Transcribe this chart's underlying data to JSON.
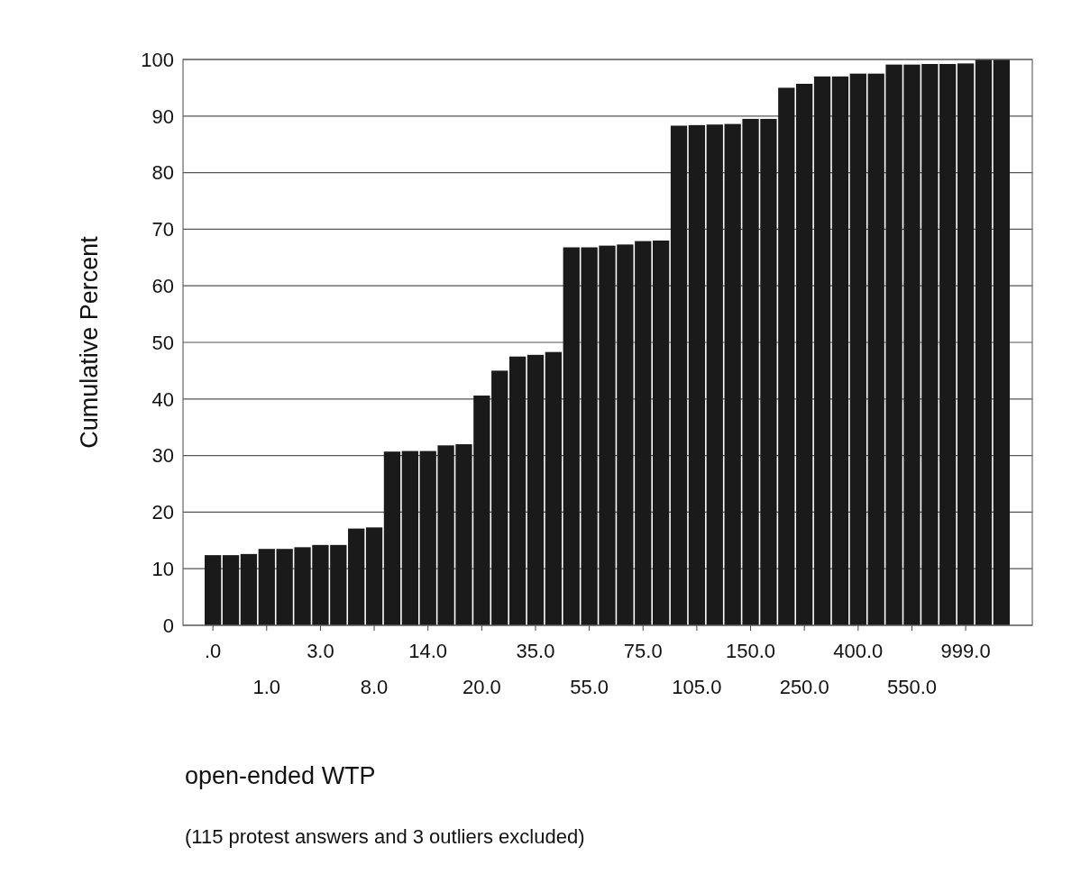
{
  "chart_data": {
    "type": "bar",
    "ylabel": "Cumulative Percent",
    "xlabel": "open-ended WTP",
    "annotations": [
      "(115 protest answers and 3 outliers excluded)"
    ],
    "categories": [
      ".0",
      null,
      null,
      "1.0",
      null,
      null,
      "3.0",
      null,
      null,
      "8.0",
      null,
      null,
      "14.0",
      null,
      null,
      "20.0",
      null,
      null,
      "35.0",
      null,
      null,
      "55.0",
      null,
      null,
      "75.0",
      null,
      null,
      "105.0",
      null,
      null,
      "150.0",
      null,
      null,
      "250.0",
      null,
      null,
      "400.0",
      null,
      null,
      "550.0",
      null,
      null,
      "999.0",
      null,
      null
    ],
    "values": [
      12.4,
      12.4,
      12.6,
      13.5,
      13.5,
      13.8,
      14.2,
      14.2,
      17.1,
      17.3,
      30.7,
      30.8,
      30.8,
      31.8,
      32.0,
      40.6,
      45.0,
      47.5,
      47.8,
      48.3,
      66.8,
      66.8,
      67.1,
      67.3,
      67.9,
      68.0,
      88.3,
      88.4,
      88.5,
      88.6,
      89.5,
      89.5,
      95.0,
      95.7,
      97.0,
      97.0,
      97.5,
      97.5,
      99.1,
      99.1,
      99.2,
      99.2,
      99.3,
      100,
      100
    ],
    "color": "#1a1a1a",
    "ylim": [
      0,
      100
    ],
    "yticks": [
      0,
      10,
      20,
      30,
      40,
      50,
      60,
      70,
      80,
      90,
      100
    ],
    "grid": "y"
  }
}
